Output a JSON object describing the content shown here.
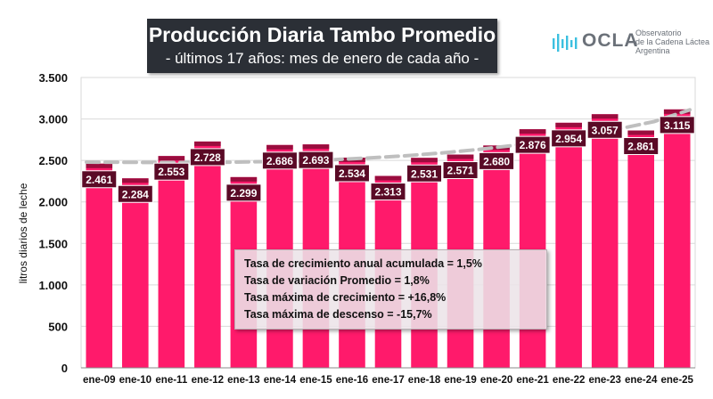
{
  "header": {
    "title": "Producción Diaria Tambo Promedio",
    "subtitle": "- últimos 17 años: mes de enero de cada año -"
  },
  "logo": {
    "name": "OCLA",
    "line1": "Observatorio",
    "line2": "de la Cadena Láctea",
    "line3": "Argentina"
  },
  "info": {
    "line1": "Tasa de crecimiento anual acumulada = 1,5%",
    "line2": "Tasa de variación Promedio = 1,8%",
    "line3": "Tasa máxima de crecimiento = +16,8%",
    "line4": "Tasa máxima de descenso = -15,7%"
  },
  "chart_data": {
    "type": "bar",
    "ylabel": "litros diarios de leche",
    "ylim": [
      0,
      3500
    ],
    "yticks": [
      0,
      500,
      1000,
      1500,
      2000,
      2500,
      3000,
      3500
    ],
    "ytick_labels": [
      "0",
      "500",
      "1.000",
      "1.500",
      "2.000",
      "2.500",
      "3.000",
      "3.500"
    ],
    "categories": [
      "ene-09",
      "ene-10",
      "ene-11",
      "ene-12",
      "ene-13",
      "ene-14",
      "ene-15",
      "ene-16",
      "ene-17",
      "ene-18",
      "ene-19",
      "ene-20",
      "ene-21",
      "ene-22",
      "ene-23",
      "ene-24",
      "ene-25"
    ],
    "values": [
      2461,
      2284,
      2553,
      2728,
      2299,
      2686,
      2693,
      2534,
      2313,
      2531,
      2571,
      2680,
      2876,
      2954,
      3057,
      2861,
      3115
    ],
    "value_labels": [
      "2.461",
      "2.284",
      "2.553",
      "2.728",
      "2.299",
      "2.686",
      "2.693",
      "2.534",
      "2.313",
      "2.531",
      "2.571",
      "2.680",
      "2.876",
      "2.954",
      "3.057",
      "2.861",
      "3.115"
    ],
    "trendline": {
      "style": "dashed",
      "values": [
        2480,
        2478,
        2476,
        2476,
        2479,
        2485,
        2495,
        2510,
        2530,
        2556,
        2590,
        2630,
        2680,
        2740,
        2810,
        2880,
        2970,
        3110
      ]
    },
    "grid": true,
    "legend": "none",
    "colors": {
      "bar": "#ff1a6b",
      "bar_top": "#9a0d3e",
      "label_bg": "#5a0a26",
      "trend": "#bfbfbf"
    }
  }
}
